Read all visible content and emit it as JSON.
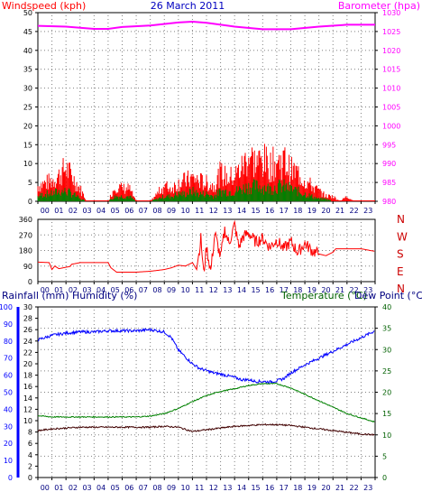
{
  "header": {
    "windspeed_label": "Windspeed (kph)",
    "date": "26 March 2011",
    "barometer_label": "Barometer (hpa)"
  },
  "lower_header": {
    "rainfall_label": "Rainfall (mm)",
    "humidity_label": "Humidity (%)",
    "temperature_label": "Temperature (°C)",
    "dewpoint_label": "Dew Point (°C)"
  },
  "colors": {
    "windspeed": "#ff0000",
    "gust": "#ff0000",
    "wind_avg": "#008000",
    "barometer": "#ff00ff",
    "direction": "#ff0000",
    "humidity": "#0000ff",
    "temperature": "#008000",
    "dewpoint": "#400000",
    "rainfall_axis": "#0000ff",
    "dots": "#808080"
  },
  "chart_data": [
    {
      "type": "line",
      "name": "wind-and-barometer",
      "x_ticks": [
        "00",
        "01",
        "02",
        "03",
        "04",
        "05",
        "06",
        "07",
        "08",
        "09",
        "10",
        "11",
        "12",
        "13",
        "14",
        "15",
        "16",
        "17",
        "18",
        "19",
        "20",
        "21",
        "22",
        "23"
      ],
      "left_axis": {
        "label": "Windspeed (kph)",
        "ticks": [
          0,
          5,
          10,
          15,
          20,
          25,
          30,
          35,
          40,
          45,
          50
        ],
        "range": [
          0,
          50
        ]
      },
      "right_axis": {
        "label": "Barometer (hpa)",
        "ticks": [
          980,
          985,
          990,
          995,
          1000,
          1005,
          1010,
          1015,
          1020,
          1025,
          1030
        ],
        "range": [
          980,
          1030
        ]
      },
      "barometer": {
        "x": [
          0,
          2,
          4,
          5,
          6,
          8,
          10,
          11,
          12,
          14,
          16,
          18,
          20,
          22,
          23,
          24
        ],
        "values": [
          1026.5,
          1026.3,
          1025.7,
          1025.7,
          1026.2,
          1026.6,
          1027.4,
          1027.6,
          1027.3,
          1026.3,
          1025.6,
          1025.6,
          1026.3,
          1026.8,
          1026.8,
          1026.8
        ]
      },
      "gust_envelope": {
        "x": [
          0,
          0.5,
          1,
          1.5,
          2,
          2.5,
          3,
          3.5,
          4,
          5,
          5.5,
          6,
          6.5,
          7,
          8,
          9,
          9.5,
          10,
          10.5,
          11,
          11.5,
          12,
          12.5,
          13,
          13.5,
          14,
          14.5,
          15,
          15.5,
          16,
          16.5,
          17,
          17.5,
          18,
          18.5,
          19,
          19.5,
          20,
          20.5,
          21,
          21.5,
          22,
          22.5,
          23
        ],
        "values": [
          6,
          7,
          8,
          10,
          13,
          9,
          5,
          0,
          0,
          0,
          6,
          5,
          5,
          0,
          0,
          6,
          5,
          7,
          8,
          9,
          8,
          7,
          6,
          11,
          9,
          10,
          13,
          18,
          15,
          16,
          14,
          15,
          16,
          12,
          11,
          8,
          6,
          4,
          2,
          2,
          0,
          2,
          0,
          0
        ]
      },
      "average_envelope": {
        "x": [
          0,
          0.5,
          1,
          1.5,
          2,
          2.5,
          3,
          3.5,
          4,
          5,
          5.5,
          6,
          6.5,
          7,
          8,
          9,
          9.5,
          10,
          10.5,
          11,
          11.5,
          12,
          12.5,
          13,
          13.5,
          14,
          14.5,
          15,
          15.5,
          16,
          16.5,
          17,
          17.5,
          18,
          18.5,
          19,
          19.5,
          20,
          20.5,
          21,
          21.5,
          22,
          22.5,
          23
        ],
        "values": [
          2,
          3,
          3,
          4,
          4,
          3,
          1,
          0,
          0,
          0,
          2,
          2,
          2,
          0,
          0,
          2,
          2,
          3,
          3,
          4,
          3,
          3,
          2,
          4,
          4,
          4,
          5,
          6,
          6,
          6,
          5,
          6,
          6,
          5,
          4,
          3,
          2,
          1,
          1,
          0,
          0,
          0,
          0,
          0
        ]
      }
    },
    {
      "type": "line",
      "name": "wind-direction",
      "x_ticks": [
        "00",
        "01",
        "02",
        "03",
        "04",
        "05",
        "06",
        "07",
        "08",
        "09",
        "10",
        "11",
        "12",
        "13",
        "14",
        "15",
        "16",
        "17",
        "18",
        "19",
        "20",
        "21",
        "22",
        "23"
      ],
      "left_axis": {
        "ticks": [
          0,
          90,
          180,
          270,
          360
        ],
        "range": [
          0,
          360
        ]
      },
      "right_labels": [
        "N",
        "W",
        "S",
        "E",
        "N"
      ],
      "x": [
        0,
        0.8,
        1,
        1.2,
        1.5,
        2.3,
        2.4,
        3,
        4,
        5,
        5.2,
        5.6,
        6,
        7,
        8,
        9,
        9.5,
        10,
        10.5,
        11,
        11.3,
        11.6,
        11.8,
        12,
        12.3,
        12.6,
        13,
        13.3,
        13.6,
        14,
        14.3,
        14.6,
        15,
        15.5,
        16,
        16.5,
        17,
        17.5,
        18,
        18.5,
        19,
        19.5,
        20,
        20.5,
        21,
        21.2,
        22,
        23,
        24
      ],
      "values": [
        113,
        110,
        70,
        90,
        75,
        88,
        100,
        110,
        110,
        110,
        80,
        55,
        55,
        55,
        60,
        70,
        80,
        95,
        90,
        110,
        70,
        250,
        45,
        200,
        60,
        280,
        140,
        300,
        220,
        330,
        200,
        260,
        280,
        230,
        250,
        200,
        240,
        190,
        230,
        170,
        220,
        180,
        160,
        150,
        170,
        190,
        190,
        190,
        175
      ]
    },
    {
      "type": "line",
      "name": "humidity-temperature-dewpoint",
      "x_ticks": [
        "00",
        "01",
        "02",
        "03",
        "04",
        "05",
        "06",
        "07",
        "08",
        "09",
        "10",
        "11",
        "12",
        "13",
        "14",
        "15",
        "16",
        "17",
        "18",
        "19",
        "20",
        "21",
        "22",
        "23"
      ],
      "rainfall_axis": {
        "label": "Rainfall (mm)",
        "ticks": [
          0,
          10,
          20,
          30,
          40,
          50,
          60,
          70,
          80,
          90,
          100
        ],
        "range": [
          0,
          100
        ]
      },
      "humidity_axis": {
        "label": "Humidity (%)",
        "ticks": [
          0,
          2,
          4,
          6,
          8,
          10,
          12,
          14,
          16,
          18,
          20,
          22,
          24,
          26,
          28,
          30
        ],
        "range": [
          0,
          30
        ]
      },
      "temperature_axis": {
        "label": "Temperature (°C)",
        "ticks": [
          0,
          5,
          10,
          15,
          20,
          25,
          30,
          35,
          40
        ],
        "range": [
          0,
          40
        ]
      },
      "humidity": {
        "x": [
          0,
          1,
          2,
          3,
          4,
          5,
          6,
          7,
          8,
          9,
          9.5,
          10,
          10.5,
          11,
          11.5,
          12,
          12.5,
          13,
          14,
          14.5,
          15,
          15.5,
          16,
          16.5,
          17,
          17.5,
          18,
          19,
          20,
          21,
          22,
          23,
          24
        ],
        "values": [
          24.2,
          25.0,
          25.4,
          25.6,
          25.6,
          25.8,
          25.8,
          25.8,
          26.0,
          25.6,
          24.6,
          22.4,
          21.2,
          20.0,
          19.2,
          18.8,
          18.4,
          18.2,
          17.6,
          17.2,
          17.2,
          16.9,
          16.9,
          16.8,
          17.0,
          17.4,
          18.4,
          19.8,
          21.0,
          22.2,
          23.4,
          24.6,
          25.8
        ]
      },
      "temperature": {
        "x": [
          0,
          1,
          2,
          3,
          4,
          5,
          6,
          7,
          8,
          9,
          10,
          11,
          12,
          13,
          14,
          15,
          16,
          17,
          18,
          19,
          20,
          21,
          22,
          23,
          24
        ],
        "values": [
          14.5,
          14.2,
          14.2,
          14.2,
          14.2,
          14.2,
          14.2,
          14.2,
          14.4,
          15.0,
          16.2,
          17.8,
          19.2,
          20.2,
          20.8,
          21.6,
          22.0,
          22.0,
          21.0,
          19.5,
          18.0,
          16.5,
          15.0,
          14.0,
          13.0
        ]
      },
      "dewpoint": {
        "x": [
          0,
          1,
          2,
          3,
          4,
          5,
          6,
          7,
          8,
          9,
          10,
          11,
          12,
          13,
          14,
          15,
          16,
          17,
          18,
          19,
          20,
          21,
          22,
          23,
          24
        ],
        "values": [
          11.0,
          11.4,
          11.6,
          11.8,
          11.8,
          11.8,
          11.8,
          11.8,
          11.8,
          12.0,
          11.8,
          10.8,
          11.2,
          11.6,
          12.0,
          12.2,
          12.4,
          12.4,
          12.2,
          11.8,
          11.4,
          11.0,
          10.6,
          10.2,
          10.0
        ]
      }
    }
  ]
}
